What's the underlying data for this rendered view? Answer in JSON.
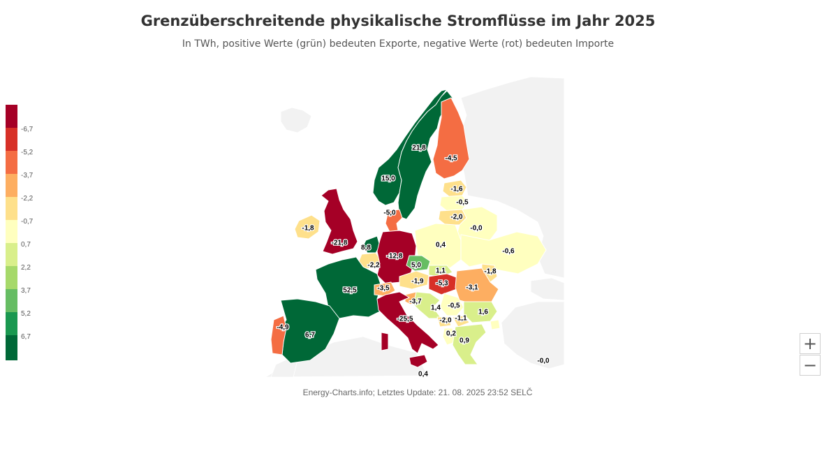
{
  "title": "Grenzüberschreitende physikalische Stromflüsse im Jahr 2025",
  "subtitle": "In TWh, positive Werte (grün) bedeuten Exporte, negative Werte (rot) bedeuten Importe",
  "credit": "Energy-Charts.info; Letztes Update: 21. 08. 2025 23:52 SELČ",
  "legend": {
    "colors": [
      "#a50026",
      "#d73027",
      "#f46d43",
      "#fdae61",
      "#fee08b",
      "#ffffbf",
      "#d9ef8b",
      "#a6d96a",
      "#66bd63",
      "#1a9850",
      "#006837"
    ],
    "labels": [
      "-6,7",
      "-5,2",
      "-3,7",
      "-2,2",
      "-0,7",
      "0,7",
      "2,2",
      "3,7",
      "5,2",
      "6,7"
    ]
  },
  "zoom": {
    "in_label": "+",
    "out_label": "−"
  },
  "colors": {
    "background_land": "#f2f2f2",
    "border": "#ffffff"
  },
  "map_data": {
    "regions": [
      {
        "name": "norway",
        "label": "15,0",
        "value": 15.0
      },
      {
        "name": "sweden",
        "label": "21,8",
        "value": 21.8
      },
      {
        "name": "finland",
        "label": "-4,5",
        "value": -4.5
      },
      {
        "name": "estonia",
        "label": "-1,6",
        "value": -1.6
      },
      {
        "name": "latvia",
        "label": "-0,5",
        "value": -0.5
      },
      {
        "name": "lithuania",
        "label": "-2,0",
        "value": -2.0
      },
      {
        "name": "belarus",
        "label": "-0,0",
        "value": -0.0
      },
      {
        "name": "denmark",
        "label": "-5,0",
        "value": -5.0
      },
      {
        "name": "ireland",
        "label": "-1,8",
        "value": -1.8
      },
      {
        "name": "great-britain",
        "label": "-21,8",
        "value": -21.8
      },
      {
        "name": "netherlands",
        "label": "8,8",
        "value": 8.8
      },
      {
        "name": "belgium",
        "label": "-2,2",
        "value": -2.2
      },
      {
        "name": "germany",
        "label": "-12,8",
        "value": -12.8
      },
      {
        "name": "poland",
        "label": "0,4",
        "value": 0.4
      },
      {
        "name": "ukraine",
        "label": "-0,6",
        "value": -0.6
      },
      {
        "name": "czechia",
        "label": "5,0",
        "value": 5.0
      },
      {
        "name": "slovakia",
        "label": "1,1",
        "value": 1.1
      },
      {
        "name": "austria",
        "label": "-1,9",
        "value": -1.9
      },
      {
        "name": "hungary",
        "label": "-5,3",
        "value": -5.3
      },
      {
        "name": "moldova",
        "label": "-1,8",
        "value": -1.8
      },
      {
        "name": "romania",
        "label": "-3,1",
        "value": -3.1
      },
      {
        "name": "france",
        "label": "52,5",
        "value": 52.5
      },
      {
        "name": "switzerland",
        "label": "-3,5",
        "value": -3.5
      },
      {
        "name": "slovenia",
        "label": "-3,7",
        "value": -3.7
      },
      {
        "name": "croatia",
        "label": "1,4",
        "value": 1.4
      },
      {
        "name": "serbia",
        "label": "-0,5",
        "value": -0.5
      },
      {
        "name": "bulgaria",
        "label": "1,6",
        "value": 1.6
      },
      {
        "name": "montenegro",
        "label": "-2,0",
        "value": -2.0
      },
      {
        "name": "north-macedonia",
        "label": "-1,1",
        "value": -1.1
      },
      {
        "name": "albania",
        "label": "0,2",
        "value": 0.2
      },
      {
        "name": "greece",
        "label": "0,9",
        "value": 0.9
      },
      {
        "name": "italy",
        "label": "-25,5",
        "value": -25.5
      },
      {
        "name": "spain",
        "label": "6,7",
        "value": 6.7
      },
      {
        "name": "portugal",
        "label": "-4,9",
        "value": -4.9
      },
      {
        "name": "turkey",
        "label": "-0,0",
        "value": -0.0
      },
      {
        "name": "malta",
        "label": "0,4",
        "value": 0.4
      }
    ]
  }
}
